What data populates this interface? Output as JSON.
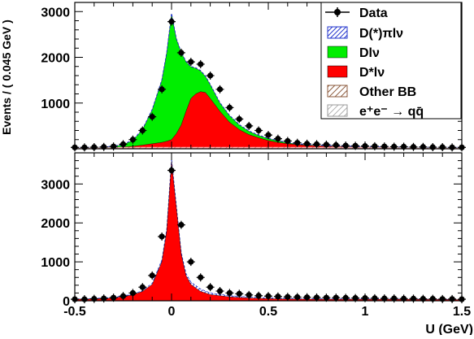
{
  "chart_data": [
    {
      "type": "area",
      "panel": "top",
      "ylabel": "Events / ( 0.045 GeV )",
      "xlim": [
        -0.5,
        1.5
      ],
      "ylim": [
        0,
        3200
      ],
      "xticks": [
        "-0.5",
        "0",
        "0.5",
        "1",
        "1.5"
      ],
      "yticks": [
        "1000",
        "2000",
        "3000"
      ],
      "legend": {
        "placement": "top-right",
        "entries": [
          {
            "label": "Data",
            "style": "marker"
          },
          {
            "label": "D(*)πlν",
            "style": "blue-hatch"
          },
          {
            "label": "Dlν",
            "style": "green"
          },
          {
            "label": "D*lν",
            "style": "red"
          },
          {
            "label": "Other BB",
            "style": "brown-hatch"
          },
          {
            "label": "e⁺e⁻ → qq̄",
            "style": "gray-hatch"
          }
        ]
      },
      "colors": {
        "green": "#00ee00",
        "red": "#ff0000",
        "blue": "#2233cc",
        "brown": "#8b5a3c",
        "gray": "#999999"
      },
      "x": [
        -0.5,
        -0.45,
        -0.4,
        -0.35,
        -0.3,
        -0.25,
        -0.2,
        -0.15,
        -0.1,
        -0.05,
        -0.025,
        0,
        0.025,
        0.05,
        0.075,
        0.1,
        0.125,
        0.15,
        0.175,
        0.2,
        0.25,
        0.3,
        0.35,
        0.4,
        0.45,
        0.5,
        0.55,
        0.6,
        0.65,
        0.7,
        0.75,
        0.8,
        0.9,
        1.0,
        1.1,
        1.2,
        1.3,
        1.4,
        1.5
      ],
      "series": [
        {
          "name": "D*lν",
          "values": [
            20,
            20,
            22,
            25,
            30,
            40,
            55,
            80,
            110,
            140,
            165,
            200,
            330,
            520,
            820,
            1100,
            1200,
            1250,
            1230,
            1100,
            820,
            580,
            420,
            310,
            240,
            180,
            140,
            110,
            90,
            75,
            65,
            55,
            45,
            38,
            30,
            25,
            22,
            20,
            20
          ]
        },
        {
          "name": "Dlν",
          "values": [
            20,
            21,
            24,
            30,
            45,
            90,
            180,
            420,
            850,
            1500,
            2100,
            2950,
            2400,
            2100,
            1900,
            1790,
            1760,
            1700,
            1580,
            1400,
            1000,
            720,
            520,
            380,
            290,
            220,
            170,
            130,
            100,
            85,
            72,
            60,
            48,
            40,
            32,
            26,
            22,
            20,
            20
          ]
        }
      ],
      "data_points": {
        "x": [
          -0.5,
          -0.45,
          -0.4,
          -0.35,
          -0.3,
          -0.25,
          -0.2,
          -0.15,
          -0.1,
          -0.05,
          0,
          0.05,
          0.1,
          0.15,
          0.2,
          0.25,
          0.3,
          0.35,
          0.4,
          0.45,
          0.5,
          0.55,
          0.6,
          0.65,
          0.7,
          0.75,
          0.8,
          0.85,
          0.9,
          0.95,
          1.0,
          1.05,
          1.1,
          1.15,
          1.2,
          1.25,
          1.3,
          1.35,
          1.4,
          1.45,
          1.5
        ],
        "y": [
          30,
          30,
          35,
          40,
          50,
          100,
          200,
          400,
          700,
          1300,
          2780,
          2100,
          1900,
          1850,
          1600,
          1300,
          900,
          650,
          500,
          400,
          300,
          220,
          170,
          130,
          110,
          100,
          90,
          80,
          70,
          65,
          60,
          55,
          50,
          45,
          45,
          40,
          40,
          35,
          35,
          30,
          30
        ]
      }
    },
    {
      "type": "area",
      "panel": "bottom",
      "xlabel": "U (GeV)",
      "xlim": [
        -0.5,
        1.5
      ],
      "ylim": [
        0,
        3800
      ],
      "xticks": [
        "-0.5",
        "0",
        "0.5",
        "1",
        "1.5"
      ],
      "yticks": [
        "0",
        "1000",
        "2000",
        "3000"
      ],
      "colors": {
        "red": "#ff0000",
        "blue": "#2233cc"
      },
      "x": [
        -0.5,
        -0.4,
        -0.3,
        -0.2,
        -0.15,
        -0.1,
        -0.05,
        -0.025,
        0,
        0.025,
        0.05,
        0.075,
        0.1,
        0.15,
        0.2,
        0.3,
        0.4,
        0.5,
        0.6,
        0.8,
        1.0,
        1.2,
        1.5
      ],
      "series": [
        {
          "name": "D*lν",
          "values": [
            40,
            50,
            70,
            150,
            240,
            420,
            1000,
            1800,
            3580,
            2400,
            1200,
            650,
            420,
            240,
            160,
            100,
            70,
            55,
            45,
            40,
            38,
            35,
            30
          ]
        },
        {
          "name": "D(*)πlν",
          "values": [
            45,
            60,
            90,
            170,
            260,
            450,
            1050,
            1850,
            3650,
            2450,
            1250,
            700,
            480,
            300,
            200,
            130,
            95,
            75,
            60,
            50,
            45,
            40,
            35
          ]
        }
      ],
      "data_points": {
        "x": [
          -0.5,
          -0.45,
          -0.4,
          -0.35,
          -0.3,
          -0.25,
          -0.2,
          -0.15,
          -0.1,
          -0.05,
          0,
          0.05,
          0.1,
          0.15,
          0.2,
          0.25,
          0.3,
          0.35,
          0.4,
          0.45,
          0.5,
          0.55,
          0.6,
          0.65,
          0.7,
          0.75,
          0.8,
          0.85,
          0.9,
          0.95,
          1.0,
          1.05,
          1.1,
          1.15,
          1.2,
          1.25,
          1.3,
          1.35,
          1.4,
          1.45,
          1.5
        ],
        "y": [
          40,
          40,
          50,
          60,
          80,
          120,
          200,
          350,
          650,
          1650,
          3350,
          1950,
          1000,
          600,
          350,
          250,
          200,
          180,
          150,
          130,
          120,
          110,
          100,
          95,
          90,
          85,
          80,
          80,
          75,
          70,
          70,
          65,
          60,
          60,
          55,
          55,
          50,
          50,
          45,
          45,
          40
        ]
      }
    }
  ]
}
